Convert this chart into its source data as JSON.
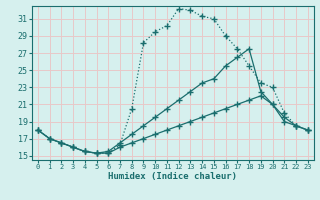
{
  "xlabel": "Humidex (Indice chaleur)",
  "bg_color": "#d6f0ee",
  "plot_bg_color": "#d6f0ee",
  "line_color": "#1a6e6e",
  "grid_color": "#e8c8c8",
  "xlim": [
    -0.5,
    23.5
  ],
  "ylim": [
    14.5,
    32.5
  ],
  "yticks": [
    15,
    17,
    19,
    21,
    23,
    25,
    27,
    29,
    31
  ],
  "xticks": [
    0,
    1,
    2,
    3,
    4,
    5,
    6,
    7,
    8,
    9,
    10,
    11,
    12,
    13,
    14,
    15,
    16,
    17,
    18,
    19,
    20,
    21,
    22,
    23
  ],
  "curve_A_x": [
    0,
    1,
    2,
    3,
    4,
    5,
    6,
    7,
    8,
    9,
    10,
    11,
    12,
    13,
    14,
    15,
    16,
    17,
    18,
    19,
    20,
    21,
    22,
    23
  ],
  "curve_A_y": [
    18.0,
    17.0,
    16.5,
    16.0,
    15.5,
    15.3,
    15.3,
    16.3,
    20.5,
    28.2,
    29.5,
    30.2,
    32.2,
    32.0,
    31.3,
    31.0,
    29.0,
    27.5,
    25.5,
    23.5,
    23.0,
    20.0,
    18.5,
    18.0
  ],
  "curve_B_x": [
    0,
    1,
    2,
    3,
    4,
    5,
    6,
    7,
    8,
    9,
    10,
    11,
    12,
    13,
    14,
    15,
    16,
    17,
    18,
    19,
    20,
    21,
    22,
    23
  ],
  "curve_B_y": [
    18.0,
    17.0,
    16.5,
    16.0,
    15.5,
    15.3,
    15.5,
    16.5,
    17.5,
    18.5,
    19.5,
    20.5,
    21.5,
    22.5,
    23.5,
    24.0,
    25.5,
    26.5,
    27.5,
    22.5,
    21.0,
    19.5,
    18.5,
    18.0
  ],
  "curve_C_x": [
    0,
    1,
    2,
    3,
    4,
    5,
    6,
    7,
    8,
    9,
    10,
    11,
    12,
    13,
    14,
    15,
    16,
    17,
    18,
    19,
    20,
    21,
    22,
    23
  ],
  "curve_C_y": [
    18.0,
    17.0,
    16.5,
    16.0,
    15.5,
    15.3,
    15.3,
    16.0,
    16.5,
    17.0,
    17.5,
    18.0,
    18.5,
    19.0,
    19.5,
    20.0,
    20.5,
    21.0,
    21.5,
    22.0,
    21.0,
    19.0,
    18.5,
    18.0
  ]
}
